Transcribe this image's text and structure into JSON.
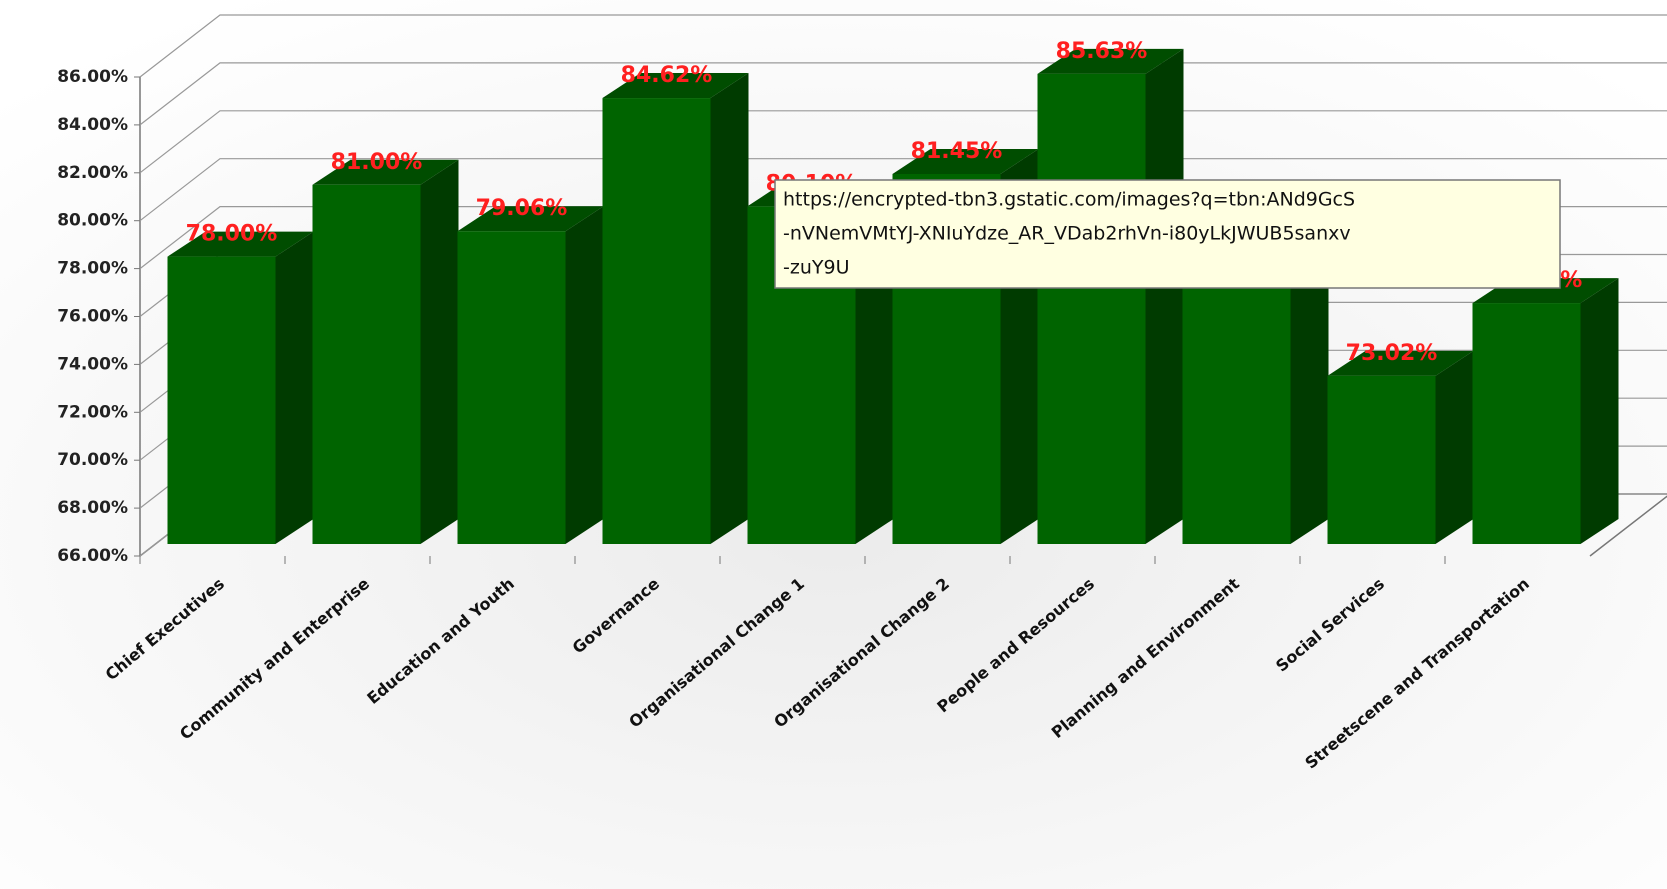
{
  "chart_data": {
    "type": "bar3d",
    "categories": [
      "Chief Executives",
      "Community and Enterprise",
      "Education and Youth",
      "Governance",
      "Organisational Change 1",
      "Organisational Change 2",
      "People and Resources",
      "Planning and Environment",
      "Social Services",
      "Streetscene and Transportation"
    ],
    "values": [
      78.0,
      81.0,
      79.06,
      84.62,
      80.1,
      81.45,
      85.63,
      78.5,
      73.02,
      76.06
    ],
    "value_labels": [
      "78.00%",
      "81.00%",
      "79.06%",
      "84.62%",
      "80.10%",
      "81.45%",
      "85.63%",
      null,
      "73.02%",
      "76.06%"
    ],
    "color": "#006400",
    "ylim": [
      66,
      86
    ],
    "yticks": [
      {
        "value": 66,
        "label": "66.00%"
      },
      {
        "value": 68,
        "label": "68.00%"
      },
      {
        "value": 70,
        "label": "70.00%"
      },
      {
        "value": 72,
        "label": "72.00%"
      },
      {
        "value": 74,
        "label": "74.00%"
      },
      {
        "value": 76,
        "label": "76.00%"
      },
      {
        "value": 78,
        "label": "78.00%"
      },
      {
        "value": 80,
        "label": "80.00%"
      },
      {
        "value": 82,
        "label": "82.00%"
      },
      {
        "value": 84,
        "label": "84.00%"
      },
      {
        "value": 86,
        "label": "86.00%"
      }
    ],
    "grid": true
  },
  "tooltip": {
    "lines": [
      "https://encrypted-tbn3.gstatic.com/images?q=tbn:ANd9GcS",
      "-nVNemVMtYJ-XNIuYdze_AR_VDab2rhVn-i80yLkJWUB5sanxv",
      "-zuY9U"
    ]
  }
}
